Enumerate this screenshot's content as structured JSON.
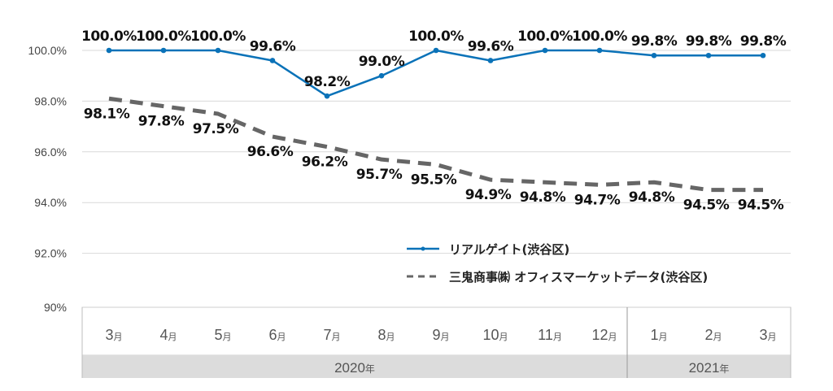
{
  "chart_data": {
    "type": "line",
    "title": "",
    "xlabel": "",
    "ylabel": "",
    "ylim": [
      90,
      100
    ],
    "grid": true,
    "y_ticks": [
      "100.0%",
      "98.0%",
      "96.0%",
      "94.0%",
      "92.0%",
      "90%"
    ],
    "y_tick_values": [
      100,
      98,
      96,
      94,
      92,
      90
    ],
    "categories": [
      "3",
      "4",
      "5",
      "6",
      "7",
      "8",
      "9",
      "10",
      "11",
      "12",
      "1",
      "2",
      "3"
    ],
    "month_suffix": "月",
    "years": [
      {
        "label": "2020",
        "suffix": "年",
        "span": 10
      },
      {
        "label": "2021",
        "suffix": "年",
        "span": 3
      }
    ],
    "legend_position": "bottom-right",
    "series": [
      {
        "name": "リアルゲイト(渋谷区)",
        "style": "solid-marker",
        "color": "#0a72b8",
        "values": [
          100.0,
          100.0,
          100.0,
          99.6,
          98.2,
          99.0,
          100.0,
          99.6,
          100.0,
          100.0,
          99.8,
          99.8,
          99.8
        ],
        "labels": [
          "100.0%",
          "100.0%",
          "100.0%",
          "99.6%",
          "98.2%",
          "99.0%",
          "100.0%",
          "99.6%",
          "100.0%",
          "100.0%",
          "99.8%",
          "99.8%",
          "99.8%"
        ]
      },
      {
        "name": "三鬼商事㈱ オフィスマーケットデータ(渋谷区)",
        "style": "dashed",
        "color": "#666666",
        "values": [
          98.1,
          97.8,
          97.5,
          96.6,
          96.2,
          95.7,
          95.5,
          94.9,
          94.8,
          94.7,
          94.8,
          94.5,
          94.5
        ],
        "labels": [
          "98.1%",
          "97.8%",
          "97.5%",
          "96.6%",
          "96.2%",
          "95.7%",
          "95.5%",
          "94.9%",
          "94.8%",
          "94.7%",
          "94.8%",
          "94.5%",
          "94.5%"
        ]
      }
    ]
  }
}
